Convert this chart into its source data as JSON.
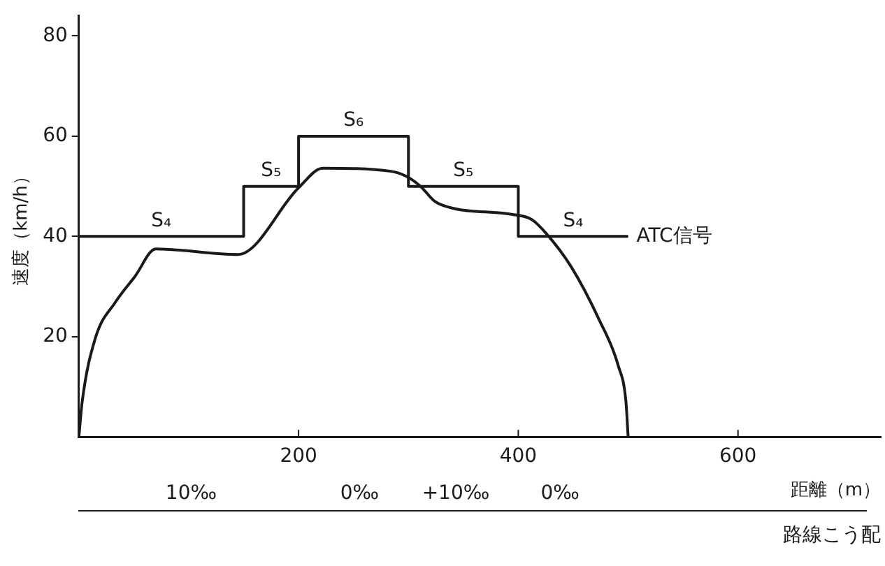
{
  "chart_data": {
    "type": "line",
    "xlabel": "距離（m）",
    "ylabel": "速度（km/h）",
    "xlim": [
      0,
      730
    ],
    "xticks": [
      200,
      400,
      600
    ],
    "ylim": [
      0,
      84
    ],
    "yticks": [
      20,
      40,
      60,
      80
    ],
    "grid": false,
    "legend": false,
    "marker": "none",
    "line_style": "solid",
    "series": [
      {
        "name": "ATC信号",
        "type": "step",
        "color": "#1a1a1a",
        "x": [
          0,
          150,
          200,
          300,
          400,
          500
        ],
        "values": [
          40,
          50,
          60,
          50,
          40,
          40
        ]
      },
      {
        "type": "line",
        "color": "#1a1a1a",
        "x": [
          0,
          3,
          15,
          33,
          51,
          70,
          145,
          200,
          222,
          284,
          298,
          311,
          324,
          341,
          394,
          412,
          425,
          448,
          474,
          491,
          498,
          500
        ],
        "values": [
          0,
          7,
          19.7,
          26.8,
          32,
          37.5,
          36.4,
          49.7,
          53.6,
          53,
          52,
          50,
          47,
          45.6,
          44.4,
          43.4,
          40.7,
          34,
          23.2,
          14.2,
          7,
          0
        ]
      }
    ],
    "annotations": [
      "S₄",
      "S₅",
      "S₆",
      "S₅",
      "S₄",
      "10‰",
      "0‰",
      "+10‰",
      "0‰",
      "路線こう配"
    ]
  }
}
